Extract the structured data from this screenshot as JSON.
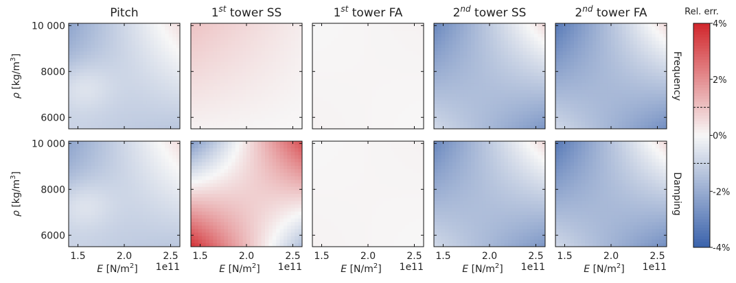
{
  "chart_data": {
    "type": "heatmap",
    "columns": [
      {
        "label": "Pitch"
      },
      {
        "label": "1",
        "sup": "st",
        "suffix": " tower SS"
      },
      {
        "label": "1",
        "sup": "st",
        "suffix": " tower FA"
      },
      {
        "label": "2",
        "sup": "nd",
        "suffix": " tower SS"
      },
      {
        "label": "2",
        "sup": "nd",
        "suffix": " tower FA"
      }
    ],
    "rows": [
      "Frequency",
      "Damping"
    ],
    "x_axis": {
      "variable": "E",
      "unit": "[N/m",
      "unit_sup": "2",
      "unit_end": "]",
      "range": [
        140000000000.0,
        260000000000.0
      ],
      "ticks": [
        1.5,
        2.0,
        2.5
      ],
      "tick_labels": [
        "1.5",
        "2.0",
        "2.5"
      ],
      "offset_text": "1e11"
    },
    "y_axis": {
      "variable": "ρ",
      "unit": "[kg/m",
      "unit_sup": "3",
      "unit_end": "]",
      "range": [
        5500,
        10100
      ],
      "ticks": [
        6000,
        8000,
        10000
      ],
      "tick_labels": [
        "6000",
        "8000",
        "10 000"
      ]
    },
    "colorbar": {
      "title": "Rel. err.",
      "range_percent": [
        -4,
        4
      ],
      "ticks": [
        4,
        2,
        0,
        -2,
        -4
      ],
      "tick_labels": [
        "4%",
        "2%",
        "0%",
        "-2%",
        "-4%"
      ],
      "contour_levels_percent": [
        -1,
        1
      ],
      "colormap": [
        "#3a62ab",
        "#f7f7f7",
        "#d1262b"
      ]
    },
    "panels": [
      {
        "row": "Frequency",
        "column": "Pitch",
        "corners_percent": {
          "E_low_rho_high": -2.2,
          "E_high_rho_high": 0.5,
          "E_low_rho_low": -1.0,
          "E_high_rho_low": -1.3
        },
        "note": "saddle, +0.7% near E=1.5e11 rho=7000"
      },
      {
        "row": "Frequency",
        "column": "1st tower SS",
        "corners_percent": {
          "E_low_rho_high": 1.0,
          "E_high_rho_high": 0.2,
          "E_low_rho_low": 0.1,
          "E_high_rho_low": 0.0
        }
      },
      {
        "row": "Frequency",
        "column": "1st tower FA",
        "corners_percent": {
          "E_low_rho_high": 0.0,
          "E_high_rho_high": 0.1,
          "E_low_rho_low": 0.1,
          "E_high_rho_low": 0.0
        }
      },
      {
        "row": "Frequency",
        "column": "2nd tower SS",
        "corners_percent": {
          "E_low_rho_high": -3.0,
          "E_high_rho_high": 0.6,
          "E_low_rho_low": -0.8,
          "E_high_rho_low": -2.6
        }
      },
      {
        "row": "Frequency",
        "column": "2nd tower FA",
        "corners_percent": {
          "E_low_rho_high": -3.4,
          "E_high_rho_high": 0.6,
          "E_low_rho_low": -0.8,
          "E_high_rho_low": -2.8
        }
      },
      {
        "row": "Damping",
        "column": "Pitch",
        "corners_percent": {
          "E_low_rho_high": -2.2,
          "E_high_rho_high": 0.5,
          "E_low_rho_low": -1.0,
          "E_high_rho_low": -1.3
        }
      },
      {
        "row": "Damping",
        "column": "1st tower SS",
        "corners_percent": {
          "E_low_rho_high": -2.5,
          "E_high_rho_high": 3.2,
          "E_low_rho_low": 3.8,
          "E_high_rho_low": -1.5
        }
      },
      {
        "row": "Damping",
        "column": "1st tower FA",
        "corners_percent": {
          "E_low_rho_high": 0.0,
          "E_high_rho_high": 0.1,
          "E_low_rho_low": 0.1,
          "E_high_rho_low": 0.0
        }
      },
      {
        "row": "Damping",
        "column": "2nd tower SS",
        "corners_percent": {
          "E_low_rho_high": -3.0,
          "E_high_rho_high": 0.6,
          "E_low_rho_low": -0.8,
          "E_high_rho_low": -2.6
        }
      },
      {
        "row": "Damping",
        "column": "2nd tower FA",
        "corners_percent": {
          "E_low_rho_high": -3.4,
          "E_high_rho_high": 0.6,
          "E_low_rho_low": -0.8,
          "E_high_rho_low": -2.8
        }
      }
    ]
  }
}
